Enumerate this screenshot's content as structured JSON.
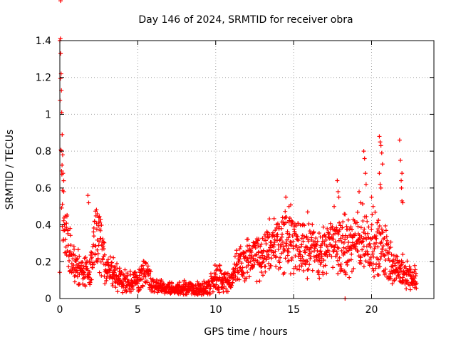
{
  "chart_data": {
    "type": "scatter",
    "title": "Day 146 of 2024, SRMTID for receiver obra",
    "xlabel": "GPS time / hours",
    "ylabel": "SRMTID / TECUs",
    "xlim": [
      0,
      24
    ],
    "ylim": [
      0,
      1.4
    ],
    "xticks": [
      0,
      5,
      10,
      15,
      20
    ],
    "xtick_labels": [
      "0",
      "5",
      "10",
      "15",
      "20"
    ],
    "yticks": [
      0,
      0.2,
      0.4,
      0.6,
      0.8,
      1,
      1.2,
      1.4
    ],
    "ytick_labels": [
      "0",
      "0.2",
      "0.4",
      "0.6",
      "0.8",
      "1",
      "1.2",
      "1.4"
    ],
    "grid": true,
    "marker": "plus",
    "color": "#ff0000",
    "series": [
      {
        "name": "SRMTID",
        "envelope": [
          {
            "x": 0.0,
            "y": 1.38
          },
          {
            "x": 0.05,
            "y": 1.2
          },
          {
            "x": 0.1,
            "y": 0.9
          },
          {
            "x": 0.15,
            "y": 0.6
          },
          {
            "x": 0.2,
            "y": 0.45
          },
          {
            "x": 0.4,
            "y": 0.42
          },
          {
            "x": 0.6,
            "y": 0.3
          },
          {
            "x": 0.8,
            "y": 0.22
          },
          {
            "x": 1.0,
            "y": 0.2
          },
          {
            "x": 1.5,
            "y": 0.14
          },
          {
            "x": 2.0,
            "y": 0.15
          },
          {
            "x": 2.3,
            "y": 0.32
          },
          {
            "x": 2.6,
            "y": 0.3
          },
          {
            "x": 3.0,
            "y": 0.15
          },
          {
            "x": 3.5,
            "y": 0.13
          },
          {
            "x": 4.0,
            "y": 0.1
          },
          {
            "x": 5.0,
            "y": 0.1
          },
          {
            "x": 5.5,
            "y": 0.15
          },
          {
            "x": 6.0,
            "y": 0.07
          },
          {
            "x": 7.0,
            "y": 0.05
          },
          {
            "x": 8.0,
            "y": 0.05
          },
          {
            "x": 9.0,
            "y": 0.05
          },
          {
            "x": 9.5,
            "y": 0.06
          },
          {
            "x": 10.0,
            "y": 0.13
          },
          {
            "x": 10.5,
            "y": 0.1
          },
          {
            "x": 11.0,
            "y": 0.1
          },
          {
            "x": 11.5,
            "y": 0.18
          },
          {
            "x": 12.0,
            "y": 0.22
          },
          {
            "x": 12.5,
            "y": 0.22
          },
          {
            "x": 13.0,
            "y": 0.2
          },
          {
            "x": 13.5,
            "y": 0.3
          },
          {
            "x": 14.0,
            "y": 0.3
          },
          {
            "x": 14.5,
            "y": 0.33
          },
          {
            "x": 15.0,
            "y": 0.32
          },
          {
            "x": 15.5,
            "y": 0.3
          },
          {
            "x": 16.0,
            "y": 0.28
          },
          {
            "x": 16.5,
            "y": 0.25
          },
          {
            "x": 17.0,
            "y": 0.25
          },
          {
            "x": 17.5,
            "y": 0.3
          },
          {
            "x": 18.0,
            "y": 0.3
          },
          {
            "x": 18.5,
            "y": 0.28
          },
          {
            "x": 19.0,
            "y": 0.3
          },
          {
            "x": 19.5,
            "y": 0.33
          },
          {
            "x": 20.0,
            "y": 0.3
          },
          {
            "x": 20.5,
            "y": 0.28
          },
          {
            "x": 21.0,
            "y": 0.25
          },
          {
            "x": 21.5,
            "y": 0.15
          },
          {
            "x": 22.0,
            "y": 0.15
          },
          {
            "x": 22.5,
            "y": 0.12
          },
          {
            "x": 22.9,
            "y": 0.1
          }
        ],
        "spikes": [
          {
            "x": 0.0,
            "y": 1.4
          },
          {
            "x": 0.05,
            "y": 1.33
          },
          {
            "x": 0.08,
            "y": 1.22
          },
          {
            "x": 0.1,
            "y": 1.13
          },
          {
            "x": 0.12,
            "y": 1.01
          },
          {
            "x": 0.15,
            "y": 0.89
          },
          {
            "x": 0.18,
            "y": 0.78
          },
          {
            "x": 0.2,
            "y": 0.68
          },
          {
            "x": 0.25,
            "y": 0.58
          },
          {
            "x": 1.8,
            "y": 0.56
          },
          {
            "x": 1.85,
            "y": 0.52
          },
          {
            "x": 2.4,
            "y": 0.46
          },
          {
            "x": 2.5,
            "y": 0.44
          },
          {
            "x": 14.5,
            "y": 0.55
          },
          {
            "x": 14.7,
            "y": 0.5
          },
          {
            "x": 15.9,
            "y": 0.47
          },
          {
            "x": 17.6,
            "y": 0.5
          },
          {
            "x": 17.8,
            "y": 0.64
          },
          {
            "x": 17.85,
            "y": 0.58
          },
          {
            "x": 17.9,
            "y": 0.55
          },
          {
            "x": 18.3,
            "y": 0.0
          },
          {
            "x": 19.2,
            "y": 0.58
          },
          {
            "x": 19.3,
            "y": 0.52
          },
          {
            "x": 19.5,
            "y": 0.8
          },
          {
            "x": 19.55,
            "y": 0.76
          },
          {
            "x": 19.6,
            "y": 0.68
          },
          {
            "x": 19.65,
            "y": 0.62
          },
          {
            "x": 20.0,
            "y": 0.55
          },
          {
            "x": 20.1,
            "y": 0.5
          },
          {
            "x": 20.5,
            "y": 0.88
          },
          {
            "x": 20.55,
            "y": 0.85
          },
          {
            "x": 20.6,
            "y": 0.83
          },
          {
            "x": 20.65,
            "y": 0.79
          },
          {
            "x": 20.7,
            "y": 0.73
          },
          {
            "x": 20.5,
            "y": 0.68
          },
          {
            "x": 20.55,
            "y": 0.62
          },
          {
            "x": 20.6,
            "y": 0.6
          },
          {
            "x": 21.8,
            "y": 0.86
          },
          {
            "x": 21.85,
            "y": 0.75
          },
          {
            "x": 21.95,
            "y": 0.68
          },
          {
            "x": 21.9,
            "y": 0.64
          },
          {
            "x": 21.92,
            "y": 0.6
          },
          {
            "x": 21.95,
            "y": 0.53
          },
          {
            "x": 22.0,
            "y": 0.52
          }
        ]
      }
    ]
  }
}
